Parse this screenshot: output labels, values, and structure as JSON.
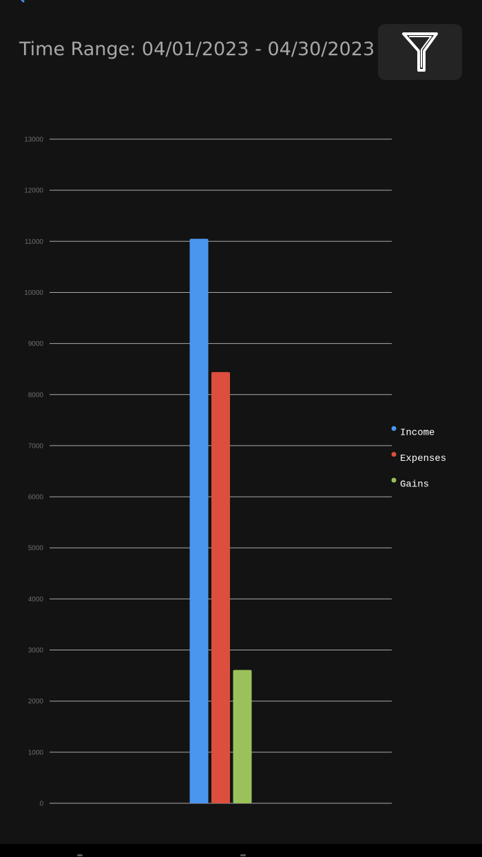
{
  "header": {
    "title": "Time Range: 04/01/2023 - 04/30/2023",
    "back_icon": "back-chevron-icon",
    "filter_icon": "filter-funnel-icon"
  },
  "colors": {
    "background": "#131313",
    "income": "#4a96ee",
    "expenses": "#dc4f3e",
    "gains": "#9bc25a",
    "grid": "#c8c8c8",
    "tick_text": "#6e6e6e",
    "legend_text": "#ffffff"
  },
  "chart_data": {
    "type": "bar",
    "categories": [
      ""
    ],
    "series": [
      {
        "name": "Income",
        "values": [
          11050
        ],
        "color": "#4a96ee"
      },
      {
        "name": "Expenses",
        "values": [
          8440
        ],
        "color": "#dc4f3e"
      },
      {
        "name": "Gains",
        "values": [
          2610
        ],
        "color": "#9bc25a"
      }
    ],
    "yticks": [
      "0",
      "1000",
      "2000",
      "3000",
      "4000",
      "5000",
      "6000",
      "7000",
      "8000",
      "9000",
      "10000",
      "11000",
      "12000",
      "13000"
    ],
    "ylim": [
      0,
      13000
    ],
    "grid": true,
    "legend": "right"
  }
}
